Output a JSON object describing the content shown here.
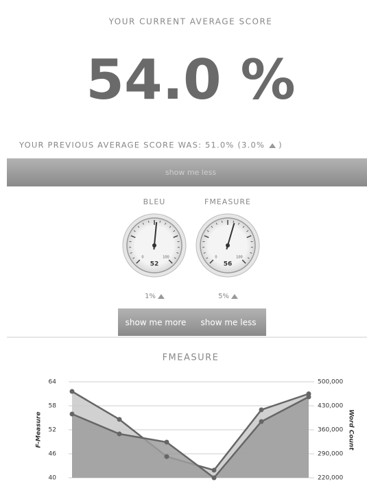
{
  "header": {
    "title": "YOUR CURRENT AVERAGE SCORE",
    "score": "54.0 %",
    "previous": "YOUR PREVIOUS AVERAGE SCORE WAS: 51.0% (3.0%",
    "previous_close": ")"
  },
  "toggle": "show me less",
  "gauges": [
    {
      "name": "BLEU",
      "value": 52,
      "range": [
        0,
        100
      ],
      "change": "1%"
    },
    {
      "name": "FMEASURE",
      "value": 56,
      "range": [
        0,
        100
      ],
      "change": "5%"
    }
  ],
  "buttons": [
    "show me more",
    "show me less"
  ],
  "chart_data": {
    "type": "line",
    "title": "FMEASURE",
    "y_label": "F-Measure",
    "y2_label": "Word Count",
    "categories": [
      null,
      null,
      null,
      null,
      null,
      null
    ],
    "series": [
      {
        "color": "#666666",
        "fill": "#c9c9c9",
        "values": [
          61.6,
          54.6,
          45.3,
          41.9,
          57,
          61
        ]
      },
      {
        "color": "#666666",
        "fill": "#9e9e9e",
        "axis": "y2",
        "values": [
          406000,
          348000,
          324000,
          220000,
          384000,
          456000
        ]
      }
    ],
    "ylim": [
      40,
      64
    ],
    "yticks": [
      40,
      46,
      52,
      58,
      64
    ],
    "y2lim": [
      220000,
      500000
    ],
    "y2ticks": [
      {
        "value": 220000,
        "label": "220,000"
      },
      {
        "value": 290000,
        "label": "290,000"
      },
      {
        "value": 360000,
        "label": "360,000"
      },
      {
        "value": 430000,
        "label": "430,000"
      },
      {
        "value": 500000,
        "label": "500,000"
      }
    ],
    "grid": true
  }
}
